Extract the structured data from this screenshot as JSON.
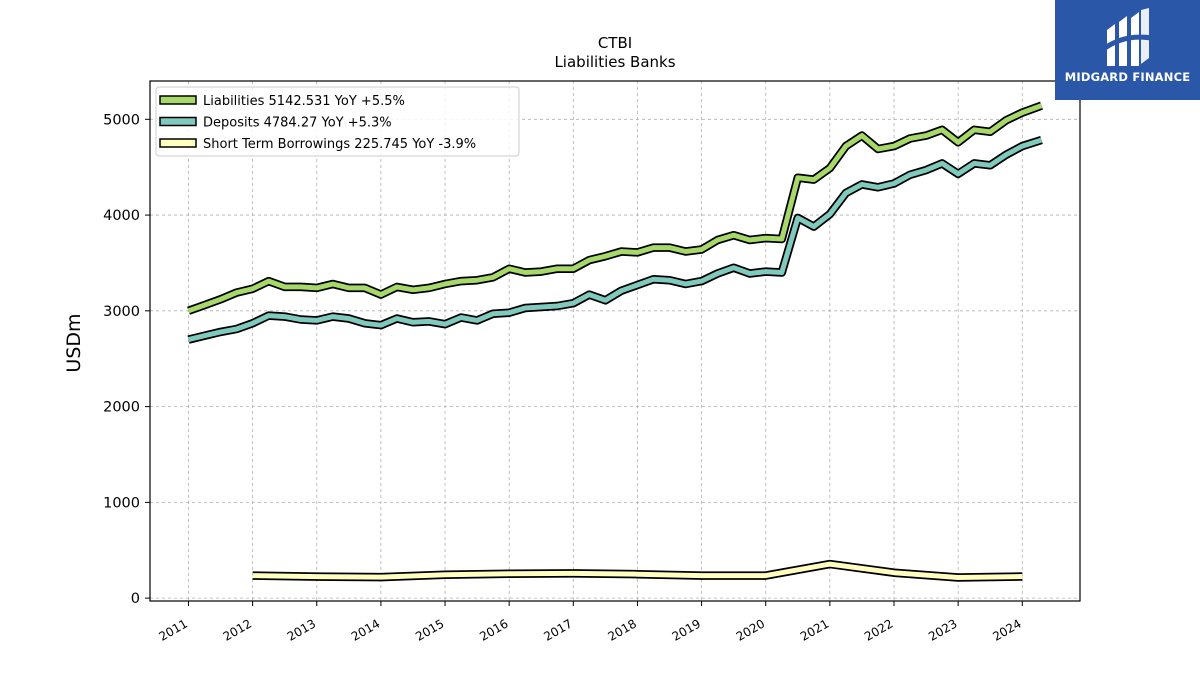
{
  "chart_data": {
    "type": "line",
    "title": "CTBI",
    "subtitle": "Liabilities Banks",
    "xlabel": "",
    "ylabel": "USDm",
    "xlim": [
      2010.4,
      2024.9
    ],
    "ylim": [
      -30,
      5400
    ],
    "xticks": [
      "2011",
      "2012",
      "2013",
      "2014",
      "2015",
      "2016",
      "2017",
      "2018",
      "2019",
      "2020",
      "2021",
      "2022",
      "2023",
      "2024"
    ],
    "yticks": [
      "0",
      "1000",
      "2000",
      "3000",
      "4000",
      "5000"
    ],
    "grid": true,
    "legend_position": "top-left",
    "series": [
      {
        "name": "Liabilities",
        "legend": "Liabilities  5142.531 YoY +5.5%",
        "color": "#a6d96a",
        "points": [
          [
            2011.0,
            3000
          ],
          [
            2011.25,
            3060
          ],
          [
            2011.5,
            3120
          ],
          [
            2011.75,
            3190
          ],
          [
            2012.0,
            3230
          ],
          [
            2012.25,
            3310
          ],
          [
            2012.5,
            3250
          ],
          [
            2012.75,
            3250
          ],
          [
            2013.0,
            3240
          ],
          [
            2013.25,
            3280
          ],
          [
            2013.5,
            3240
          ],
          [
            2013.75,
            3240
          ],
          [
            2014.0,
            3170
          ],
          [
            2014.25,
            3250
          ],
          [
            2014.5,
            3220
          ],
          [
            2014.75,
            3240
          ],
          [
            2015.0,
            3280
          ],
          [
            2015.25,
            3310
          ],
          [
            2015.5,
            3320
          ],
          [
            2015.75,
            3350
          ],
          [
            2016.0,
            3440
          ],
          [
            2016.25,
            3400
          ],
          [
            2016.5,
            3410
          ],
          [
            2016.75,
            3440
          ],
          [
            2017.0,
            3440
          ],
          [
            2017.25,
            3530
          ],
          [
            2017.5,
            3570
          ],
          [
            2017.75,
            3620
          ],
          [
            2018.0,
            3610
          ],
          [
            2018.25,
            3660
          ],
          [
            2018.5,
            3660
          ],
          [
            2018.75,
            3620
          ],
          [
            2019.0,
            3640
          ],
          [
            2019.25,
            3740
          ],
          [
            2019.5,
            3790
          ],
          [
            2019.75,
            3740
          ],
          [
            2020.0,
            3760
          ],
          [
            2020.25,
            3750
          ],
          [
            2020.5,
            4390
          ],
          [
            2020.75,
            4370
          ],
          [
            2021.0,
            4490
          ],
          [
            2021.25,
            4720
          ],
          [
            2021.5,
            4830
          ],
          [
            2021.75,
            4690
          ],
          [
            2022.0,
            4720
          ],
          [
            2022.25,
            4800
          ],
          [
            2022.5,
            4830
          ],
          [
            2022.75,
            4890
          ],
          [
            2023.0,
            4760
          ],
          [
            2023.25,
            4890
          ],
          [
            2023.5,
            4870
          ],
          [
            2023.75,
            4990
          ],
          [
            2024.0,
            5070
          ],
          [
            2024.3,
            5143
          ]
        ]
      },
      {
        "name": "Deposits",
        "legend": "Deposits  4784.27 YoY +5.3%",
        "color": "#7fc9bd",
        "points": [
          [
            2011.0,
            2700
          ],
          [
            2011.25,
            2740
          ],
          [
            2011.5,
            2780
          ],
          [
            2011.75,
            2810
          ],
          [
            2012.0,
            2870
          ],
          [
            2012.25,
            2950
          ],
          [
            2012.5,
            2940
          ],
          [
            2012.75,
            2910
          ],
          [
            2013.0,
            2900
          ],
          [
            2013.25,
            2940
          ],
          [
            2013.5,
            2920
          ],
          [
            2013.75,
            2870
          ],
          [
            2014.0,
            2850
          ],
          [
            2014.25,
            2920
          ],
          [
            2014.5,
            2880
          ],
          [
            2014.75,
            2890
          ],
          [
            2015.0,
            2860
          ],
          [
            2015.25,
            2930
          ],
          [
            2015.5,
            2900
          ],
          [
            2015.75,
            2970
          ],
          [
            2016.0,
            2980
          ],
          [
            2016.25,
            3030
          ],
          [
            2016.5,
            3040
          ],
          [
            2016.75,
            3050
          ],
          [
            2017.0,
            3080
          ],
          [
            2017.25,
            3170
          ],
          [
            2017.5,
            3110
          ],
          [
            2017.75,
            3210
          ],
          [
            2018.0,
            3270
          ],
          [
            2018.25,
            3330
          ],
          [
            2018.5,
            3320
          ],
          [
            2018.75,
            3280
          ],
          [
            2019.0,
            3310
          ],
          [
            2019.25,
            3390
          ],
          [
            2019.5,
            3450
          ],
          [
            2019.75,
            3390
          ],
          [
            2020.0,
            3410
          ],
          [
            2020.25,
            3400
          ],
          [
            2020.5,
            3970
          ],
          [
            2020.75,
            3880
          ],
          [
            2021.0,
            4010
          ],
          [
            2021.25,
            4230
          ],
          [
            2021.5,
            4320
          ],
          [
            2021.75,
            4290
          ],
          [
            2022.0,
            4330
          ],
          [
            2022.25,
            4420
          ],
          [
            2022.5,
            4470
          ],
          [
            2022.75,
            4540
          ],
          [
            2023.0,
            4430
          ],
          [
            2023.25,
            4540
          ],
          [
            2023.5,
            4520
          ],
          [
            2023.75,
            4630
          ],
          [
            2024.0,
            4720
          ],
          [
            2024.3,
            4784
          ]
        ]
      },
      {
        "name": "Short Term Borrowings",
        "legend": "Short Term Borrowings  225.745 YoY -3.9%",
        "color": "#ffffbf",
        "points": [
          [
            2012.0,
            235
          ],
          [
            2013.0,
            225
          ],
          [
            2014.0,
            220
          ],
          [
            2015.0,
            245
          ],
          [
            2016.0,
            255
          ],
          [
            2017.0,
            258
          ],
          [
            2018.0,
            250
          ],
          [
            2019.0,
            235
          ],
          [
            2020.0,
            235
          ],
          [
            2021.0,
            355
          ],
          [
            2022.0,
            265
          ],
          [
            2023.0,
            215
          ],
          [
            2024.0,
            226
          ]
        ]
      }
    ]
  },
  "logo": {
    "text": "MIDGARD FINANCE",
    "background": "#2b57a8"
  }
}
